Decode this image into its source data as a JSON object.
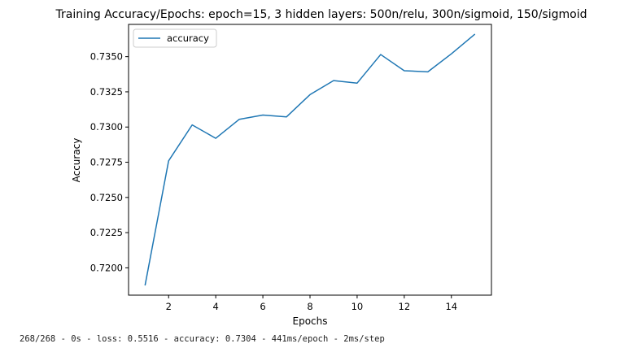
{
  "chart_data": {
    "type": "line",
    "title": "Training Accuracy/Epochs: epoch=15, 3 hidden layers: 500n/relu, 300n/sigmoid, 150/sigmoid",
    "xlabel": "Epochs",
    "ylabel": "Accuracy",
    "x": [
      1,
      2,
      3,
      4,
      5,
      6,
      7,
      8,
      9,
      10,
      11,
      12,
      13,
      14,
      15
    ],
    "series": [
      {
        "name": "accuracy",
        "color": "#1f77b4",
        "values": [
          0.71875,
          0.7276,
          0.73015,
          0.7292,
          0.73055,
          0.73085,
          0.73072,
          0.7323,
          0.7333,
          0.73312,
          0.73515,
          0.734,
          0.73392,
          0.7352,
          0.7366
        ]
      }
    ],
    "xticks": [
      2,
      4,
      6,
      8,
      10,
      12,
      14
    ],
    "xtick_labels": [
      "2",
      "4",
      "6",
      "8",
      "10",
      "12",
      "14"
    ],
    "yticks": [
      0.72,
      0.7225,
      0.725,
      0.7275,
      0.73,
      0.7325,
      0.735
    ],
    "ytick_labels": [
      "0.7200",
      "0.7225",
      "0.7250",
      "0.7275",
      "0.7300",
      "0.7325",
      "0.7350"
    ],
    "xlim": [
      0.3,
      15.7
    ],
    "ylim": [
      0.71806,
      0.73729
    ],
    "legend": "top-left",
    "grid": false
  },
  "console": {
    "text": "268/268 - 0s - loss: 0.5516 - accuracy: 0.7304 - 441ms/epoch - 2ms/step"
  }
}
